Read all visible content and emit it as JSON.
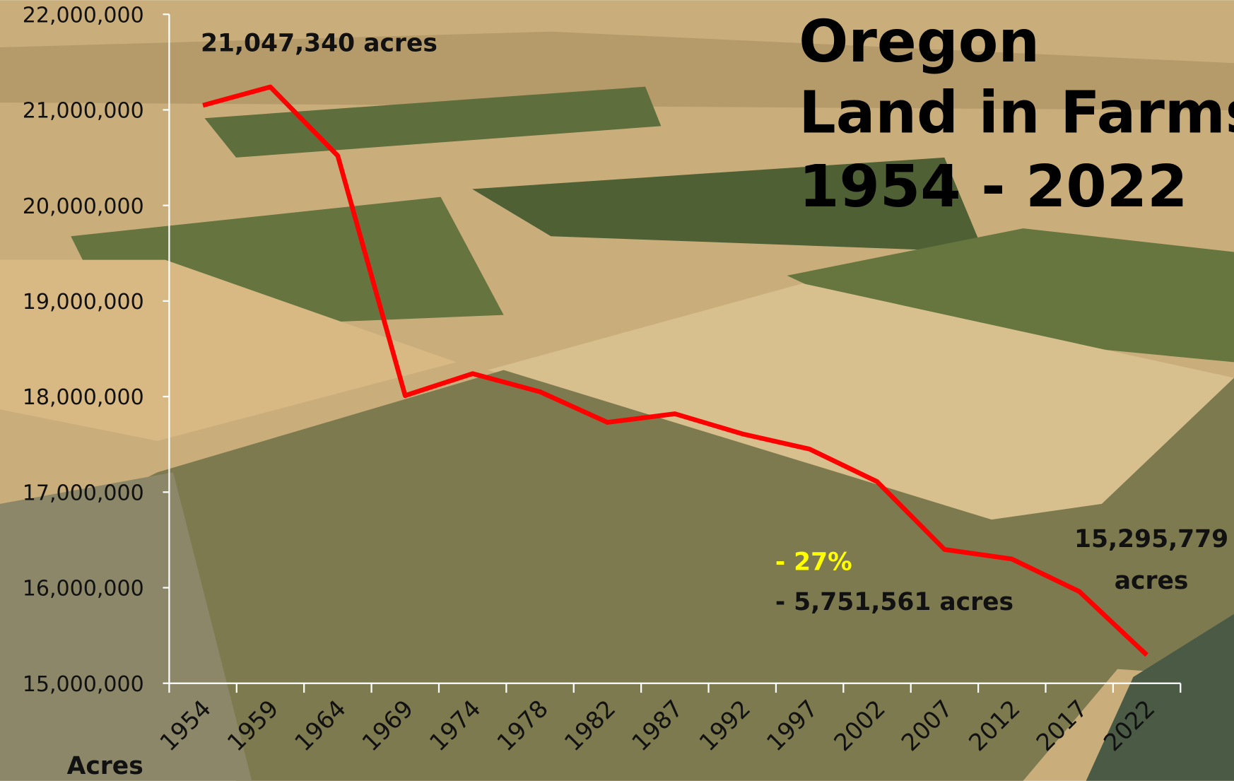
{
  "chart_data": {
    "type": "line",
    "title": [
      "Oregon",
      "Land in Farms",
      "1954 - 2022"
    ],
    "y_label": "Acres",
    "categories": [
      "1954",
      "1959",
      "1964",
      "1969",
      "1974",
      "1978",
      "1982",
      "1987",
      "1992",
      "1997",
      "2002",
      "2007",
      "2012",
      "2017",
      "2022"
    ],
    "values": [
      21047340,
      21240000,
      20520000,
      18010000,
      18240000,
      18050000,
      17730000,
      17820000,
      17610000,
      17450000,
      17110000,
      16400000,
      16300000,
      15960000,
      15295779
    ],
    "color": "#ff0000",
    "ylim": [
      15000000,
      22000000
    ],
    "yticks": [
      {
        "value": 15000000,
        "label": "15,000,000"
      },
      {
        "value": 16000000,
        "label": "16,000,000"
      },
      {
        "value": 17000000,
        "label": "17,000,000"
      },
      {
        "value": 18000000,
        "label": "18,000,000"
      },
      {
        "value": 19000000,
        "label": "19,000,000"
      },
      {
        "value": 20000000,
        "label": "20,000,000"
      },
      {
        "value": 21000000,
        "label": "21,000,000"
      },
      {
        "value": 22000000,
        "label": "22,000,000"
      }
    ],
    "annotations": [
      "21,047,340 acres",
      "15,295,779",
      "acres",
      "- 27%",
      "- 5,751,561 acres"
    ]
  }
}
